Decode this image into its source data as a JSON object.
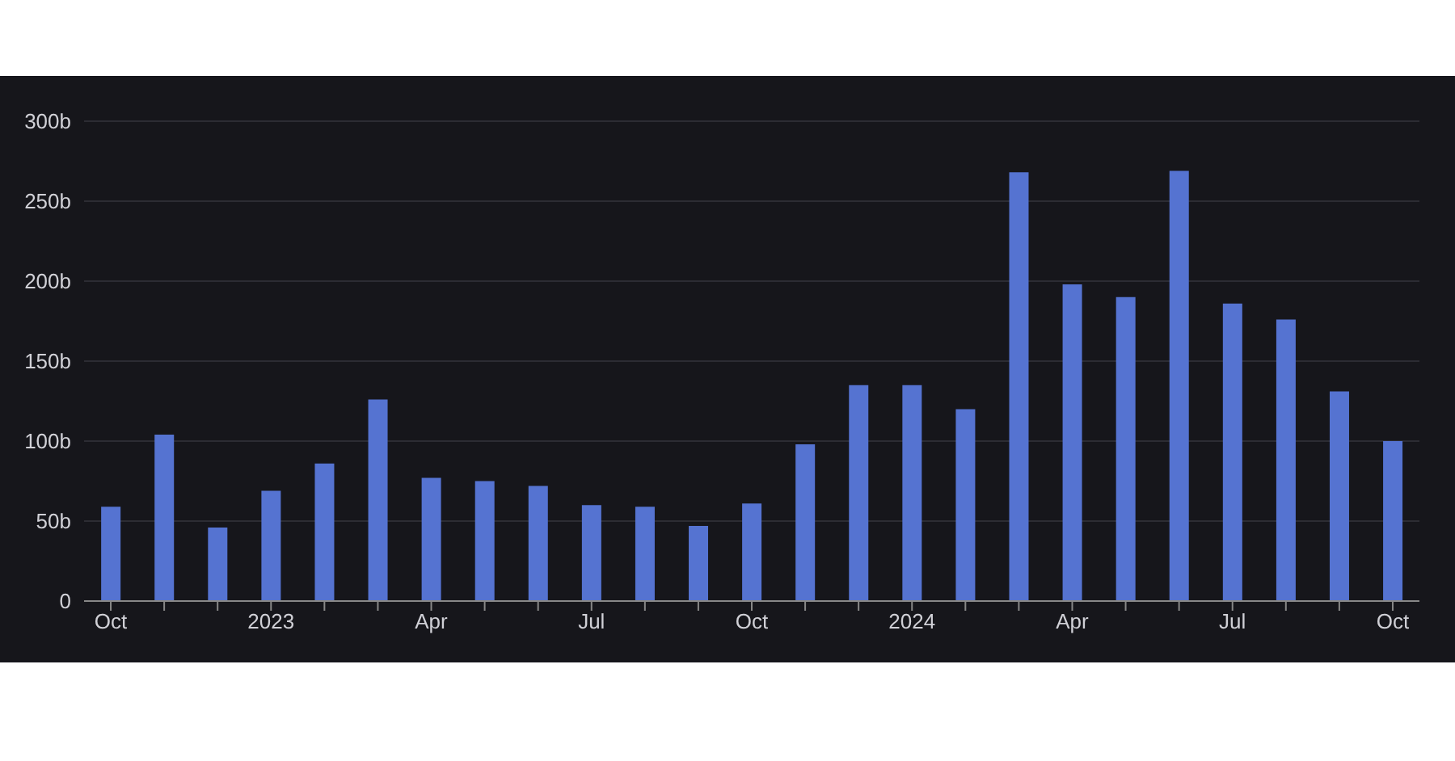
{
  "chart_data": {
    "type": "bar",
    "categories": [
      "Oct",
      null,
      null,
      "2023",
      null,
      null,
      "Apr",
      null,
      null,
      "Jul",
      null,
      null,
      "Oct",
      null,
      null,
      "2024",
      null,
      null,
      "Apr",
      null,
      null,
      "Jul",
      null,
      null,
      "Oct"
    ],
    "values": [
      59,
      104,
      46,
      69,
      86,
      126,
      77,
      75,
      72,
      60,
      59,
      47,
      61,
      98,
      135,
      135,
      120,
      268,
      198,
      190,
      269,
      186,
      176,
      131,
      100
    ],
    "color": "#5573d1",
    "ylim": [
      0,
      300
    ],
    "yticks": [
      {
        "value": 0,
        "label": "0"
      },
      {
        "value": 50,
        "label": "50b"
      },
      {
        "value": 100,
        "label": "100b"
      },
      {
        "value": 150,
        "label": "150b"
      },
      {
        "value": 200,
        "label": "200b"
      },
      {
        "value": 250,
        "label": "250b"
      },
      {
        "value": 300,
        "label": "300b"
      }
    ],
    "grid": "y"
  }
}
